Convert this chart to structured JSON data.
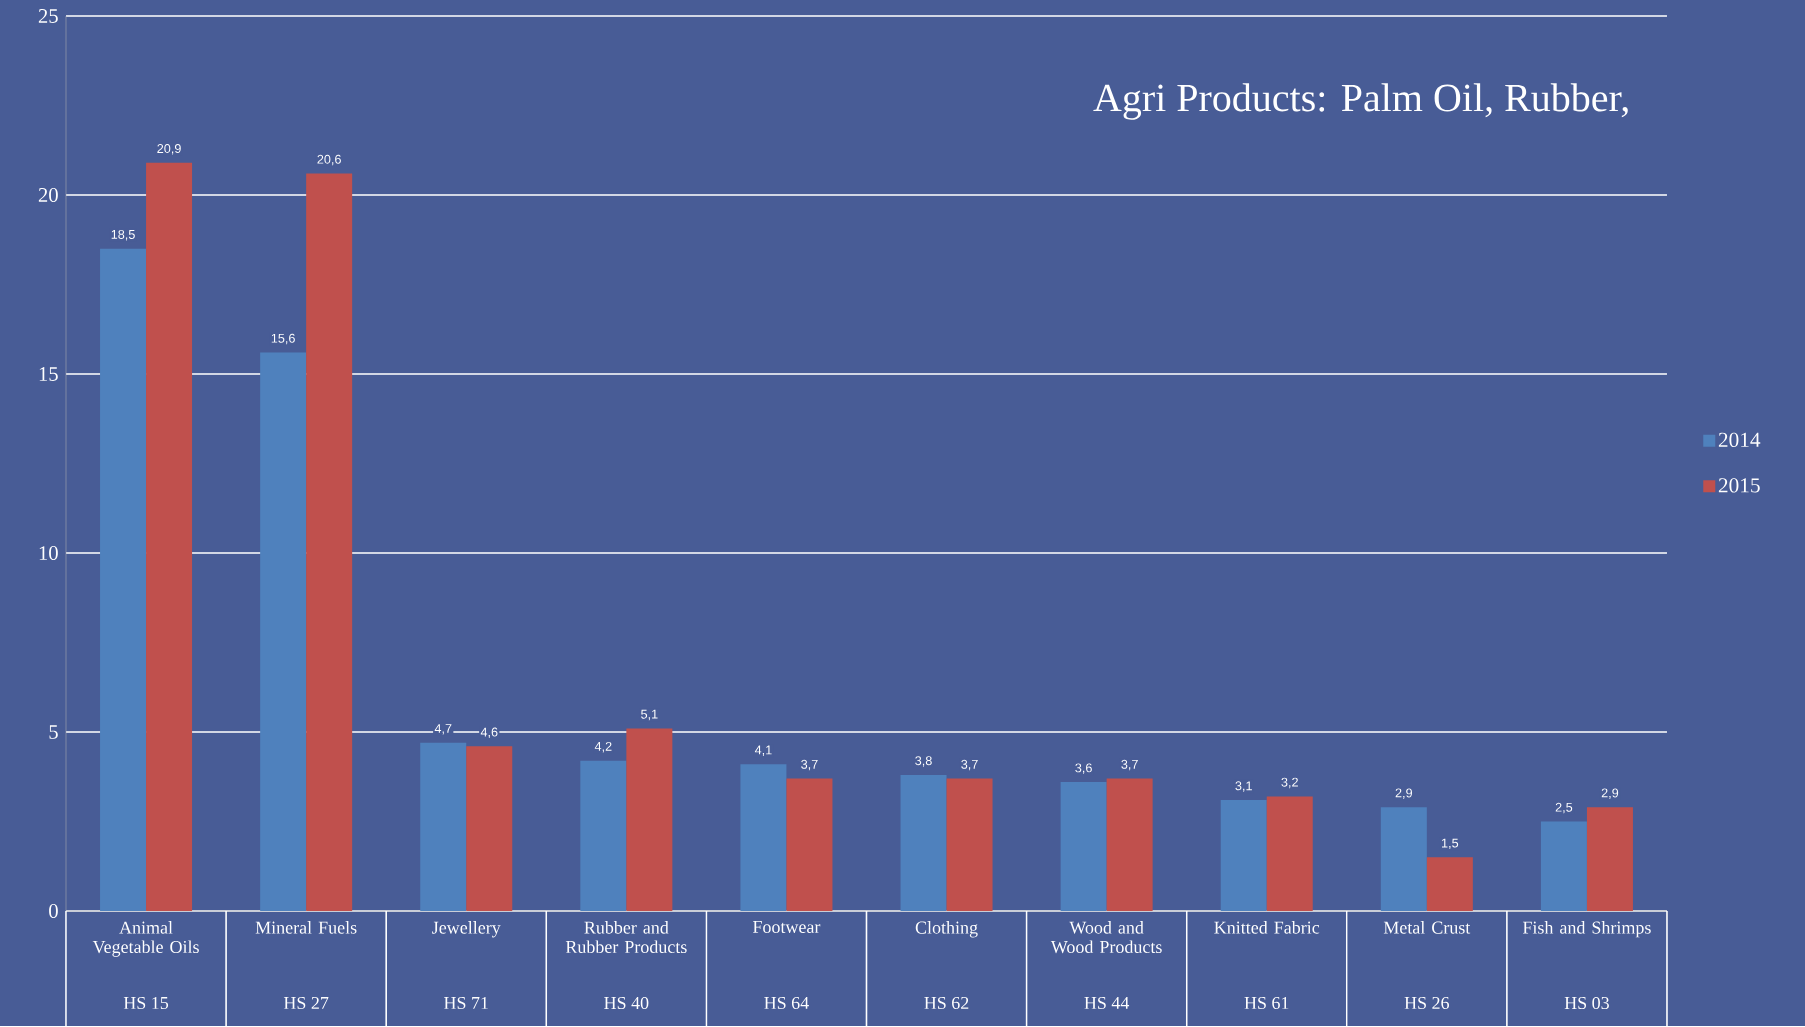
{
  "chart_data": {
    "type": "bar",
    "categories": [
      "Animal Vegetable Oils",
      "Mineral Fuels",
      "Jewellery",
      "Rubber and Rubber Products",
      "Footwear",
      "Clothing",
      "Wood and Wood Products",
      "Knitted Fabric",
      "Metal Crust",
      "Fish and Shrimps"
    ],
    "series": [
      {
        "name": "2014",
        "color": "#4f81bd",
        "values": [
          18.5,
          15.6,
          4.7,
          4.2,
          4.1,
          3.8,
          3.6,
          3.1,
          2.9,
          2.5
        ],
        "value_labels": [
          "18,5",
          "15,6",
          "4,7",
          "4,2",
          "4,1",
          "3,8",
          "3,6",
          "3,1",
          "2,9",
          "2,5"
        ]
      },
      {
        "name": "2015",
        "color": "#c0504d",
        "values": [
          20.9,
          20.6,
          4.6,
          5.1,
          3.7,
          3.7,
          3.7,
          3.2,
          1.5,
          2.9
        ],
        "value_labels": [
          "20,9",
          "20,6",
          "4,6",
          "5,1",
          "3,7",
          "3,7",
          "3,7",
          "3,2",
          "1,5",
          "2,9"
        ]
      }
    ],
    "ylim": [
      0,
      25
    ],
    "yticks": [
      0,
      5,
      10,
      15,
      20,
      25
    ],
    "grid": "y",
    "legend": "right",
    "annotations": [
      "HS 15",
      "HS 27",
      "HS 71",
      "HS 40",
      "HS 64",
      "HS 62",
      "HS 44",
      "HS 61",
      "HS 26",
      "HS 03",
      "Agri Products: Palm Oil, Rubber,"
    ]
  }
}
